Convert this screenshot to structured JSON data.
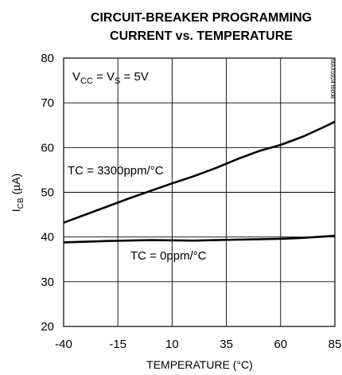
{
  "chart_data": {
    "type": "line",
    "title_line1": "CIRCUIT-BREAKER PROGRAMMING",
    "title_line2": "CURRENT vs. TEMPERATURE",
    "xlabel": "TEMPERATURE (°C)",
    "ylabel_main": "I",
    "ylabel_sub": "CB",
    "ylabel_unit": " (µA)",
    "xlim": [
      -40,
      85
    ],
    "ylim": [
      20,
      80
    ],
    "x_ticks": [
      -40,
      -15,
      10,
      35,
      60,
      85
    ],
    "y_ticks": [
      20,
      30,
      40,
      50,
      60,
      70,
      80
    ],
    "grid": true,
    "condition": {
      "v1": "V",
      "v1_sub": "CC",
      "eq": " = V",
      "v2_sub": "S",
      "value": " = 5V"
    },
    "series": [
      {
        "name": "TC = 3300ppm/°C",
        "x": [
          -40,
          -30,
          -20,
          -10,
          0,
          10,
          20,
          30,
          40,
          50,
          60,
          70,
          80,
          85
        ],
        "y": [
          43.2,
          45.0,
          46.8,
          48.6,
          50.3,
          52.0,
          53.6,
          55.4,
          57.4,
          59.2,
          60.6,
          62.4,
          64.6,
          65.8
        ]
      },
      {
        "name": "TC = 0ppm/°C",
        "x": [
          -40,
          -20,
          0,
          20,
          40,
          60,
          70,
          80,
          85
        ],
        "y": [
          38.8,
          39.1,
          39.3,
          39.2,
          39.4,
          39.6,
          39.8,
          40.1,
          40.3
        ]
      }
    ],
    "side_id": "MAX5924 toc08"
  }
}
